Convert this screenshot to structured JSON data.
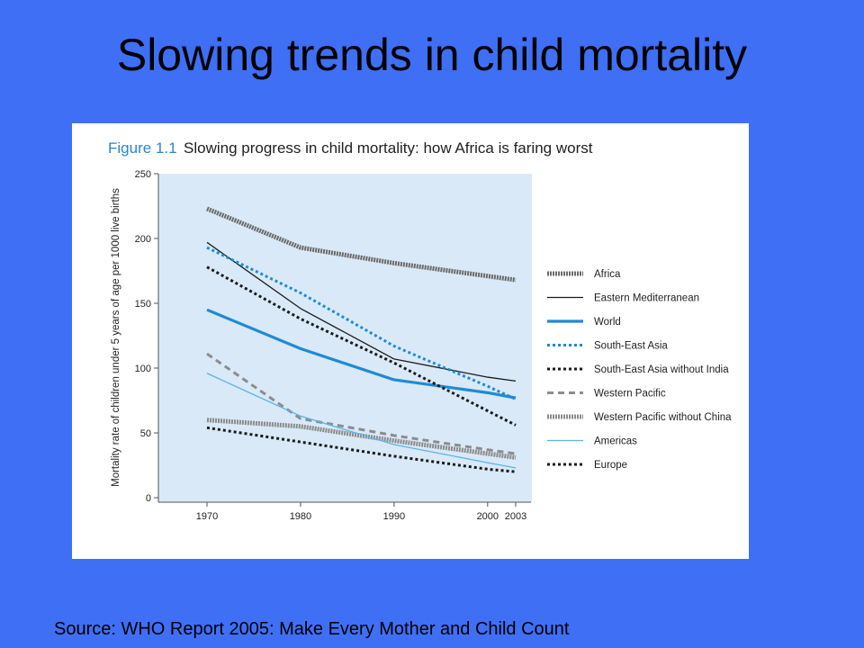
{
  "slide": {
    "title": "Slowing trends in child mortality",
    "source": "Source: WHO Report 2005: Make Every Mother and Child Count"
  },
  "chart_data": {
    "type": "line",
    "title_prefix": "Figure 1.1",
    "title": "Slowing progress in child mortality: how Africa is faring worst",
    "xlabel": "",
    "ylabel": "Mortality rate of children under 5 years of age per 1000 live births",
    "x": [
      1970,
      1980,
      1990,
      2000,
      2003
    ],
    "xticks": [
      "1970",
      "1980",
      "1990",
      "2000",
      "2003"
    ],
    "yticks": [
      "0",
      "50",
      "100",
      "150",
      "200",
      "250"
    ],
    "ylim": [
      0,
      250
    ],
    "grid": false,
    "legend_position": "right",
    "background_color": "#d9e9f7",
    "series": [
      {
        "name": "Africa",
        "values": [
          223,
          193,
          181,
          171,
          168
        ],
        "color": "#6b6b6b",
        "style": "thick-gray"
      },
      {
        "name": "Eastern Mediterranean",
        "values": [
          197,
          146,
          107,
          93,
          90
        ],
        "color": "#1a1a1a",
        "style": "thin"
      },
      {
        "name": "World",
        "values": [
          145,
          115,
          91,
          81,
          77
        ],
        "color": "#1f8ad6",
        "style": "thick"
      },
      {
        "name": "South-East Asia",
        "values": [
          193,
          158,
          117,
          86,
          76
        ],
        "color": "#1f8ad6",
        "style": "dotted"
      },
      {
        "name": "South-East Asia without India",
        "values": [
          178,
          138,
          104,
          67,
          56
        ],
        "color": "#1a1a1a",
        "style": "dotted"
      },
      {
        "name": "Western Pacific",
        "values": [
          111,
          61,
          48,
          37,
          34
        ],
        "color": "#8c8c8c",
        "style": "dashed"
      },
      {
        "name": "Western Pacific without China",
        "values": [
          60,
          55,
          44,
          34,
          31
        ],
        "color": "#8c8c8c",
        "style": "thick-gray"
      },
      {
        "name": "Americas",
        "values": [
          96,
          63,
          41,
          27,
          23
        ],
        "color": "#5ab3e6",
        "style": "thin"
      },
      {
        "name": "Europe",
        "values": [
          54,
          43,
          32,
          22,
          20
        ],
        "color": "#1a1a1a",
        "style": "dotted"
      }
    ]
  }
}
